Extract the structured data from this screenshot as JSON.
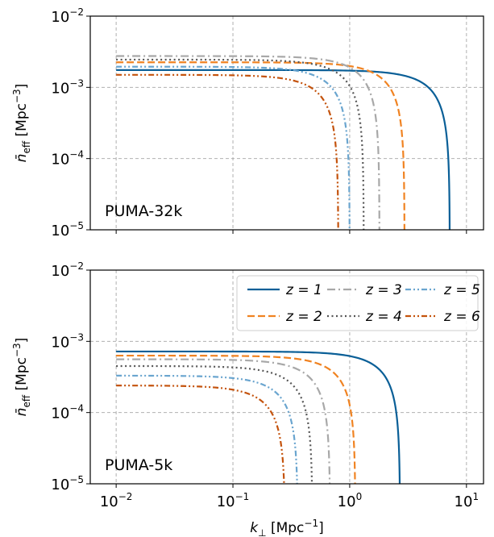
{
  "chart_data": [
    {
      "type": "line",
      "panel_label": "PUMA-32k",
      "x_scale": "log",
      "y_scale": "log",
      "xlim": [
        0.006,
        14
      ],
      "ylim": [
        1e-05,
        0.01
      ],
      "xlabel": "",
      "ylabel": {
        "main": "n̄",
        "sub": "eff",
        "unit_prefix": " [Mpc",
        "unit_exp": "−3",
        "unit_suffix": "]"
      },
      "x_ticks": [
        0.01,
        0.1,
        1,
        10
      ],
      "y_ticks": [
        1e-05,
        0.0001,
        0.001,
        0.01
      ],
      "y_tick_labels": [
        {
          "base": "10",
          "exp": "−5"
        },
        {
          "base": "10",
          "exp": "−4"
        },
        {
          "base": "10",
          "exp": "−3"
        },
        {
          "base": "10",
          "exp": "−2"
        }
      ],
      "grid": true,
      "series": [
        {
          "name": "z = 1",
          "color": "#0a5f97",
          "dash": "solid",
          "n0": 0.00175,
          "kc": 7.2
        },
        {
          "name": "z = 2",
          "color": "#f08322",
          "dash": "dashed",
          "n0": 0.00225,
          "kc": 2.95
        },
        {
          "name": "z = 3",
          "color": "#a8a8a8",
          "dash": "dashdot",
          "n0": 0.00275,
          "kc": 1.8
        },
        {
          "name": "z = 4",
          "color": "#555555",
          "dash": "dotted",
          "n0": 0.00245,
          "kc": 1.32
        },
        {
          "name": "z = 5",
          "color": "#6aa5cf",
          "dash": "dashdotdot",
          "n0": 0.00195,
          "kc": 1.0
        },
        {
          "name": "z = 6",
          "color": "#c4530d",
          "dash": "dashdotdot",
          "n0": 0.0015,
          "kc": 0.8
        }
      ]
    },
    {
      "type": "line",
      "panel_label": "PUMA-5k",
      "x_scale": "log",
      "y_scale": "log",
      "xlim": [
        0.006,
        14
      ],
      "ylim": [
        1e-05,
        0.01
      ],
      "xlabel": {
        "main": "k",
        "sub": "⊥",
        "unit_prefix": " [Mpc",
        "unit_exp": "−1",
        "unit_suffix": "]"
      },
      "ylabel": {
        "main": "n̄",
        "sub": "eff",
        "unit_prefix": " [Mpc",
        "unit_exp": "−3",
        "unit_suffix": "]"
      },
      "x_ticks": [
        0.01,
        0.1,
        1,
        10
      ],
      "x_tick_labels": [
        {
          "base": "10",
          "exp": "−2"
        },
        {
          "base": "10",
          "exp": "−1"
        },
        {
          "base": "10",
          "exp": "0"
        },
        {
          "base": "10",
          "exp": "1"
        }
      ],
      "y_ticks": [
        1e-05,
        0.0001,
        0.001,
        0.01
      ],
      "y_tick_labels": [
        {
          "base": "10",
          "exp": "−5"
        },
        {
          "base": "10",
          "exp": "−4"
        },
        {
          "base": "10",
          "exp": "−3"
        },
        {
          "base": "10",
          "exp": "−2"
        }
      ],
      "grid": true,
      "legend": {
        "placement": "upper-right",
        "columns": 3
      },
      "series": [
        {
          "name": "z = 1",
          "color": "#0a5f97",
          "dash": "solid",
          "n0": 0.00072,
          "kc": 2.7
        },
        {
          "name": "z = 2",
          "color": "#f08322",
          "dash": "dashed",
          "n0": 0.00063,
          "kc": 1.12
        },
        {
          "name": "z = 3",
          "color": "#a8a8a8",
          "dash": "dashdot",
          "n0": 0.00056,
          "kc": 0.68
        },
        {
          "name": "z = 4",
          "color": "#555555",
          "dash": "dotted",
          "n0": 0.00045,
          "kc": 0.48
        },
        {
          "name": "z = 5",
          "color": "#6aa5cf",
          "dash": "dashdotdot",
          "n0": 0.00033,
          "kc": 0.36
        },
        {
          "name": "z = 6",
          "color": "#c4530d",
          "dash": "dashdotdot",
          "n0": 0.00024,
          "kc": 0.28
        }
      ]
    }
  ]
}
